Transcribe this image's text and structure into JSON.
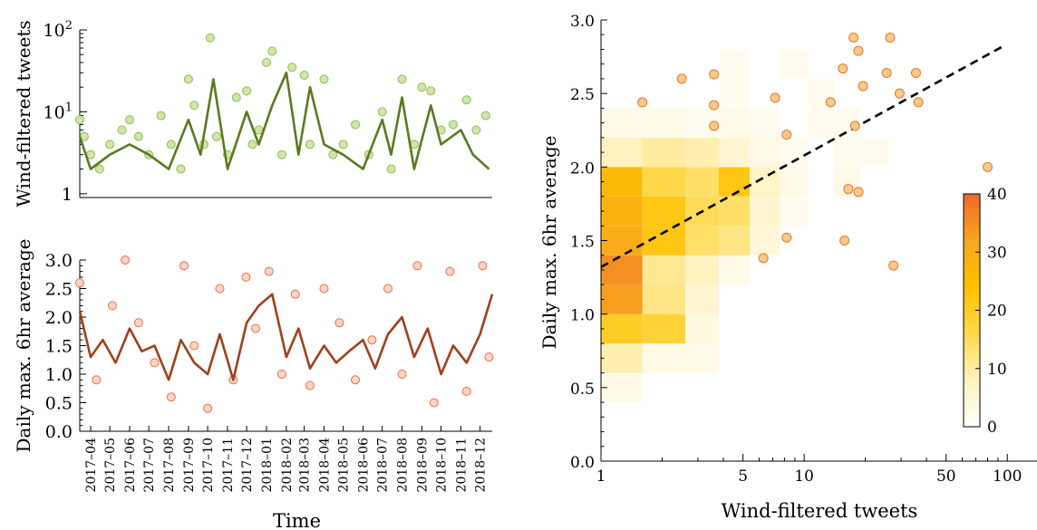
{
  "chart_data": [
    {
      "type": "line",
      "panel": "top-left",
      "xlabel": "",
      "ylabel": "Wind-filtered tweets",
      "yscale": "log",
      "ylim": [
        0.9,
        100
      ],
      "y_ticks": [
        {
          "value": 1,
          "label": "1"
        },
        {
          "value": 10,
          "label": "10^1"
        },
        {
          "value": 100,
          "label": "10^2"
        }
      ],
      "x_range": [
        "2017-03-15",
        "2018-12-20"
      ],
      "colors": {
        "points_fill": "#cfe6a8",
        "points_edge": "#8fbc5a",
        "line": "#5a7a1e"
      },
      "series": [
        {
          "role": "daily points",
          "x": [
            "2017-03-15",
            "2017-03-22",
            "2017-04-01",
            "2017-04-15",
            "2017-05-01",
            "2017-05-20",
            "2017-06-01",
            "2017-06-15",
            "2017-07-01",
            "2017-07-20",
            "2017-08-05",
            "2017-08-20",
            "2017-09-01",
            "2017-09-10",
            "2017-09-25",
            "2017-10-05",
            "2017-10-15",
            "2017-11-01",
            "2017-11-15",
            "2017-12-01",
            "2017-12-10",
            "2017-12-20",
            "2018-01-01",
            "2018-01-10",
            "2018-01-25",
            "2018-02-10",
            "2018-03-01",
            "2018-03-10",
            "2018-04-01",
            "2018-04-15",
            "2018-05-01",
            "2018-05-20",
            "2018-06-10",
            "2018-07-01",
            "2018-07-15",
            "2018-08-01",
            "2018-08-20",
            "2018-09-01",
            "2018-09-15",
            "2018-10-01",
            "2018-10-20",
            "2018-11-10",
            "2018-11-25",
            "2018-12-10"
          ],
          "values": [
            8,
            5,
            3,
            2,
            4,
            6,
            8,
            5,
            3,
            9,
            4,
            2,
            25,
            12,
            4,
            80,
            5,
            3,
            15,
            18,
            4,
            6,
            40,
            55,
            3,
            35,
            28,
            4,
            25,
            3,
            4,
            7,
            3,
            10,
            2,
            25,
            4,
            20,
            18,
            6,
            7,
            14,
            6,
            9
          ]
        },
        {
          "role": "smoothed line",
          "x": [
            "2017-03-15",
            "2017-04-01",
            "2017-05-01",
            "2017-06-01",
            "2017-07-01",
            "2017-08-01",
            "2017-09-01",
            "2017-09-20",
            "2017-10-10",
            "2017-11-01",
            "2017-12-01",
            "2017-12-20",
            "2018-01-10",
            "2018-02-01",
            "2018-02-20",
            "2018-03-10",
            "2018-04-01",
            "2018-05-01",
            "2018-06-01",
            "2018-07-01",
            "2018-07-15",
            "2018-08-01",
            "2018-08-20",
            "2018-09-15",
            "2018-10-01",
            "2018-11-01",
            "2018-11-20",
            "2018-12-15"
          ],
          "values": [
            5,
            2,
            3,
            4,
            3,
            2,
            8,
            3,
            25,
            2,
            10,
            4,
            12,
            30,
            3,
            20,
            4,
            3,
            2,
            8,
            3,
            15,
            2,
            12,
            4,
            6,
            3,
            2
          ]
        }
      ]
    },
    {
      "type": "line",
      "panel": "bottom-left",
      "xlabel": "Time",
      "ylabel": "Daily max. 6hr average",
      "ylim": [
        0.0,
        3.0
      ],
      "y_ticks": [
        "0.0",
        "0.5",
        "1.0",
        "1.5",
        "2.0",
        "2.5",
        "3.0"
      ],
      "x_tick_labels": [
        "2017–04",
        "2017–05",
        "2017–06",
        "2017–07",
        "2017–08",
        "2017–09",
        "2017–10",
        "2017–11",
        "2017–12",
        "2018–01",
        "2018–02",
        "2018–03",
        "2018–04",
        "2018–05",
        "2018–06",
        "2018–07",
        "2018–08",
        "2018–09",
        "2018–10",
        "2018–11",
        "2018–12"
      ],
      "colors": {
        "points_fill": "#fcd5c8",
        "points_edge": "#e8704a",
        "line": "#a0401c"
      },
      "series": [
        {
          "role": "daily points",
          "x": [
            "2017-03-15",
            "2017-04-10",
            "2017-05-05",
            "2017-05-25",
            "2017-06-15",
            "2017-07-10",
            "2017-08-05",
            "2017-08-25",
            "2017-09-10",
            "2017-10-01",
            "2017-10-20",
            "2017-11-10",
            "2017-11-30",
            "2017-12-15",
            "2018-01-05",
            "2018-01-25",
            "2018-02-15",
            "2018-03-10",
            "2018-04-01",
            "2018-04-25",
            "2018-05-20",
            "2018-06-15",
            "2018-07-10",
            "2018-08-01",
            "2018-08-25",
            "2018-09-20",
            "2018-10-15",
            "2018-11-10",
            "2018-12-05",
            "2018-12-15"
          ],
          "values": [
            2.6,
            0.9,
            2.2,
            3.0,
            1.9,
            1.2,
            0.6,
            2.9,
            1.5,
            0.4,
            2.5,
            0.9,
            2.7,
            1.8,
            2.8,
            1.0,
            2.4,
            0.8,
            2.5,
            1.9,
            0.9,
            1.6,
            2.5,
            1.0,
            2.9,
            0.5,
            2.8,
            0.7,
            2.9,
            1.3
          ]
        },
        {
          "role": "smoothed line",
          "x": [
            "2017-03-15",
            "2017-04-01",
            "2017-04-20",
            "2017-05-10",
            "2017-06-01",
            "2017-06-20",
            "2017-07-10",
            "2017-08-01",
            "2017-08-20",
            "2017-09-10",
            "2017-10-01",
            "2017-10-20",
            "2017-11-10",
            "2017-12-01",
            "2017-12-20",
            "2018-01-10",
            "2018-02-01",
            "2018-02-20",
            "2018-03-10",
            "2018-04-01",
            "2018-04-20",
            "2018-05-10",
            "2018-06-01",
            "2018-06-20",
            "2018-07-10",
            "2018-08-01",
            "2018-08-20",
            "2018-09-10",
            "2018-10-01",
            "2018-10-20",
            "2018-11-10",
            "2018-12-01",
            "2018-12-20"
          ],
          "values": [
            2.1,
            1.3,
            1.6,
            1.2,
            1.8,
            1.4,
            1.5,
            0.9,
            1.6,
            1.2,
            1.0,
            1.7,
            0.9,
            1.9,
            2.2,
            2.4,
            1.3,
            1.8,
            1.1,
            1.5,
            1.2,
            1.4,
            1.6,
            1.1,
            1.7,
            2.0,
            1.3,
            1.8,
            1.0,
            1.5,
            1.2,
            1.7,
            2.4
          ]
        }
      ]
    },
    {
      "type": "heatmap",
      "panel": "right",
      "xlabel": "Wind-filtered tweets",
      "ylabel": "Daily max. 6hr average",
      "xscale": "log",
      "xlim": [
        1,
        140
      ],
      "ylim": [
        0.0,
        3.0
      ],
      "x_ticks": [
        {
          "value": 1,
          "label": "1"
        },
        {
          "value": 5,
          "label": "5"
        },
        {
          "value": 10,
          "label": "10"
        },
        {
          "value": 50,
          "label": "50"
        },
        {
          "value": 100,
          "label": "100"
        }
      ],
      "y_ticks": [
        "0.0",
        "0.5",
        "1.0",
        "1.5",
        "2.0",
        "2.5",
        "3.0"
      ],
      "colorbar": {
        "min": 0,
        "max": 40,
        "ticks": [
          "0",
          "10",
          "20",
          "30",
          "40"
        ],
        "colors": [
          "#ffffff",
          "#fff2c0",
          "#ffd84a",
          "#ffc000",
          "#f8a520",
          "#ee6a2a"
        ]
      },
      "x_bin_edges": [
        1,
        1.6,
        2.6,
        3.8,
        5.4,
        7.6,
        10.5,
        14,
        19,
        26
      ],
      "y_bin_edges": [
        0.4,
        0.6,
        0.8,
        1.0,
        1.2,
        1.4,
        1.6,
        1.8,
        2.0,
        2.2,
        2.4,
        2.6,
        2.8,
        3.0
      ],
      "cells": [
        {
          "xi": 0,
          "yi": 0,
          "count": 3
        },
        {
          "xi": 0,
          "yi": 1,
          "count": 9
        },
        {
          "xi": 1,
          "yi": 1,
          "count": 3
        },
        {
          "xi": 2,
          "yi": 1,
          "count": 3
        },
        {
          "xi": 0,
          "yi": 2,
          "count": 20
        },
        {
          "xi": 1,
          "yi": 2,
          "count": 18
        },
        {
          "xi": 2,
          "yi": 2,
          "count": 4
        },
        {
          "xi": 0,
          "yi": 3,
          "count": 33
        },
        {
          "xi": 1,
          "yi": 3,
          "count": 12
        },
        {
          "xi": 2,
          "yi": 3,
          "count": 6
        },
        {
          "xi": 0,
          "yi": 4,
          "count": 35
        },
        {
          "xi": 1,
          "yi": 4,
          "count": 11
        },
        {
          "xi": 2,
          "yi": 4,
          "count": 8
        },
        {
          "xi": 3,
          "yi": 4,
          "count": 3
        },
        {
          "xi": 0,
          "yi": 5,
          "count": 30
        },
        {
          "xi": 1,
          "yi": 5,
          "count": 22
        },
        {
          "xi": 2,
          "yi": 5,
          "count": 14
        },
        {
          "xi": 3,
          "yi": 5,
          "count": 12
        },
        {
          "xi": 4,
          "yi": 5,
          "count": 5
        },
        {
          "xi": 0,
          "yi": 6,
          "count": 28
        },
        {
          "xi": 1,
          "yi": 6,
          "count": 22
        },
        {
          "xi": 2,
          "yi": 6,
          "count": 15
        },
        {
          "xi": 3,
          "yi": 6,
          "count": 14
        },
        {
          "xi": 4,
          "yi": 6,
          "count": 6
        },
        {
          "xi": 5,
          "yi": 6,
          "count": 2
        },
        {
          "xi": 0,
          "yi": 7,
          "count": 26
        },
        {
          "xi": 1,
          "yi": 7,
          "count": 16
        },
        {
          "xi": 2,
          "yi": 7,
          "count": 14
        },
        {
          "xi": 3,
          "yi": 7,
          "count": 22
        },
        {
          "xi": 4,
          "yi": 7,
          "count": 7
        },
        {
          "xi": 5,
          "yi": 7,
          "count": 3
        },
        {
          "xi": 7,
          "yi": 7,
          "count": 3
        },
        {
          "xi": 0,
          "yi": 8,
          "count": 8
        },
        {
          "xi": 1,
          "yi": 8,
          "count": 10
        },
        {
          "xi": 2,
          "yi": 8,
          "count": 9
        },
        {
          "xi": 3,
          "yi": 8,
          "count": 6
        },
        {
          "xi": 4,
          "yi": 8,
          "count": 3
        },
        {
          "xi": 5,
          "yi": 8,
          "count": 2
        },
        {
          "xi": 7,
          "yi": 8,
          "count": 2
        },
        {
          "xi": 8,
          "yi": 8,
          "count": 2
        },
        {
          "xi": 0,
          "yi": 9,
          "count": 3
        },
        {
          "xi": 1,
          "yi": 9,
          "count": 3
        },
        {
          "xi": 2,
          "yi": 9,
          "count": 2
        },
        {
          "xi": 3,
          "yi": 9,
          "count": 3
        },
        {
          "xi": 4,
          "yi": 9,
          "count": 2
        },
        {
          "xi": 6,
          "yi": 9,
          "count": 2
        },
        {
          "xi": 7,
          "yi": 9,
          "count": 2
        },
        {
          "xi": 3,
          "yi": 10,
          "count": 2
        },
        {
          "xi": 6,
          "yi": 10,
          "count": 2
        },
        {
          "xi": 3,
          "yi": 11,
          "count": 2
        },
        {
          "xi": 5,
          "yi": 11,
          "count": 2
        },
        {
          "xi": 3,
          "yi": 13,
          "count": 2
        }
      ],
      "outlier_points": [
        {
          "x": 1.6,
          "y": 2.44
        },
        {
          "x": 2.5,
          "y": 2.6
        },
        {
          "x": 3.6,
          "y": 2.63
        },
        {
          "x": 3.6,
          "y": 2.42
        },
        {
          "x": 3.6,
          "y": 2.28
        },
        {
          "x": 7.2,
          "y": 2.47
        },
        {
          "x": 8.2,
          "y": 2.22
        },
        {
          "x": 8.2,
          "y": 1.52
        },
        {
          "x": 6.3,
          "y": 1.38
        },
        {
          "x": 13.5,
          "y": 2.44
        },
        {
          "x": 15.5,
          "y": 2.67
        },
        {
          "x": 17.5,
          "y": 2.88
        },
        {
          "x": 18.5,
          "y": 2.79
        },
        {
          "x": 19.5,
          "y": 2.55
        },
        {
          "x": 16.5,
          "y": 1.85
        },
        {
          "x": 18.5,
          "y": 1.83
        },
        {
          "x": 17.8,
          "y": 2.28
        },
        {
          "x": 15.8,
          "y": 1.5
        },
        {
          "x": 26.5,
          "y": 2.88
        },
        {
          "x": 25.5,
          "y": 2.64
        },
        {
          "x": 29.5,
          "y": 2.5
        },
        {
          "x": 35.5,
          "y": 2.64
        },
        {
          "x": 36.5,
          "y": 2.44
        },
        {
          "x": 27.5,
          "y": 1.33
        },
        {
          "x": 80,
          "y": 2.0
        }
      ],
      "fit_line": {
        "style": "dashed",
        "x": [
          1,
          95
        ],
        "y": [
          1.32,
          2.82
        ]
      },
      "colors": {
        "points_fill": "#fbc98a",
        "points_edge": "#e07a2a",
        "fit_line": "#000000"
      }
    }
  ]
}
